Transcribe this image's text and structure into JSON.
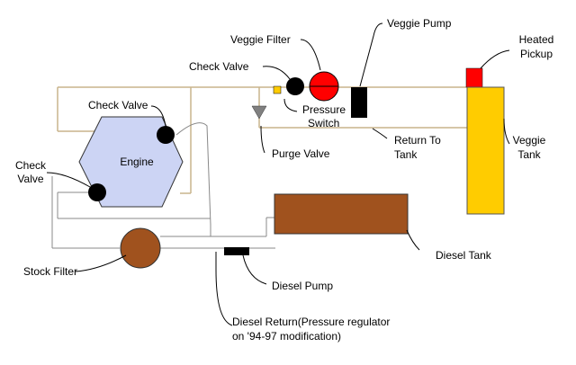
{
  "labels": {
    "veggie_filter": "Veggie Filter",
    "veggie_pump": "Veggie Pump",
    "heated_pickup_1": "Heated",
    "heated_pickup_2": "Pickup",
    "check_valve_top": "Check Valve",
    "pressure_switch_1": "Pressure",
    "pressure_switch_2": "Switch",
    "check_valve_engine": "Check Valve",
    "engine": "Engine",
    "check_valve_left_1": "Check",
    "check_valve_left_2": "Valve",
    "purge_valve": "Purge Valve",
    "return_to_tank_1": "Return To",
    "return_to_tank_2": "Tank",
    "veggie_tank_1": "Veggie",
    "veggie_tank_2": "Tank",
    "diesel_tank": "Diesel Tank",
    "stock_filter": "Stock Filter",
    "diesel_pump": "Diesel Pump",
    "diesel_return_1": "Diesel Return(Pressure regulator",
    "diesel_return_2": "on '94-97 modification)"
  },
  "colors": {
    "line": "#c8b48c",
    "veggie_tank": "#ffcc00",
    "heated_pickup": "#ff0000",
    "veggie_filter": "#ff0000",
    "pressure_switch": "#ffcc00",
    "diesel_tank": "#a0521e",
    "stock_filter": "#a0521e",
    "engine": "#ccd4f4",
    "purge_valve": "#808080"
  }
}
